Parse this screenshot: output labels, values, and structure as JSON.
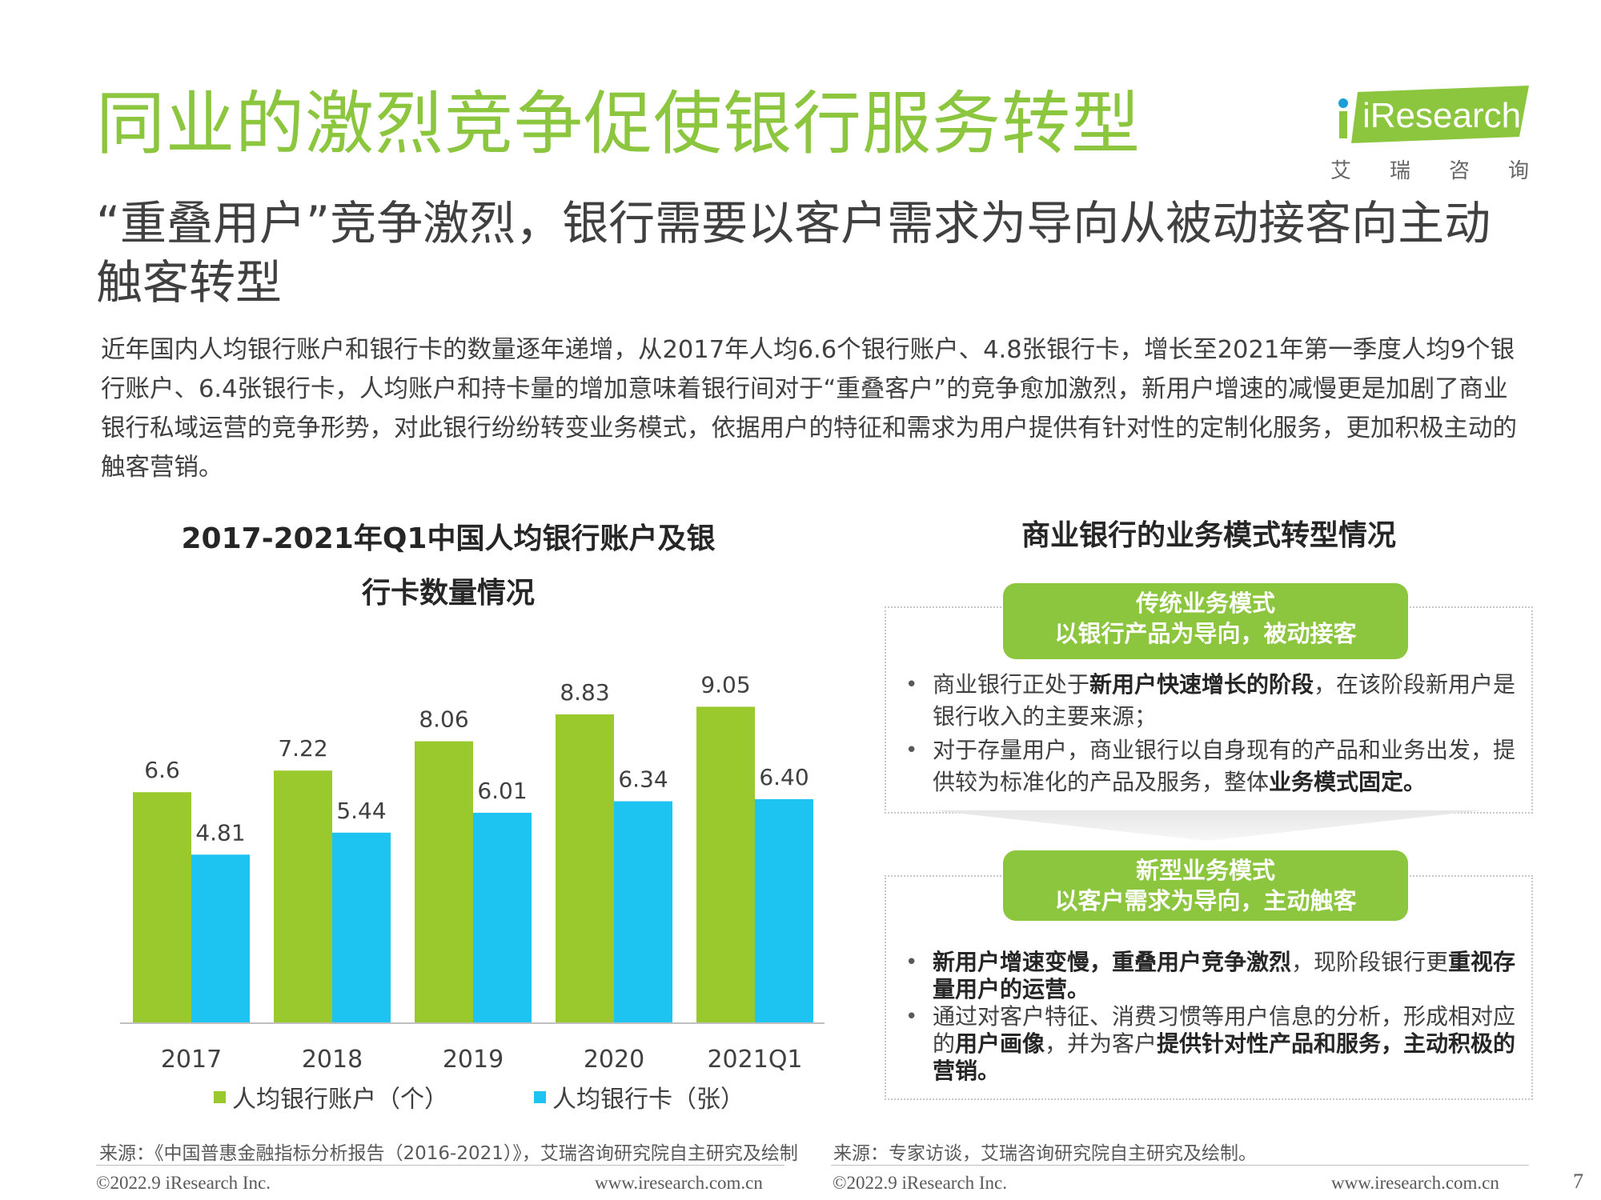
{
  "header": {
    "title": "同业的激烈竞争促使银行服务转型",
    "logo_text": "iResearch",
    "logo_sub": [
      "艾",
      "瑞",
      "咨",
      "询"
    ],
    "subtitle": "“重叠用户”竞争激烈，银行需要以客户需求为导向从被动接客向主动触客转型",
    "body": "近年国内人均银行账户和银行卡的数量逐年递增，从2017年人均6.6个银行账户、4.8张银行卡，增长至2021年第一季度人均9个银行账户、6.4张银行卡，人均账户和持卡量的增加意味着银行间对于“重叠客户”的竞争愈加激烈，新用户增速的减慢更是加剧了商业银行私域运营的竞争形势，对此银行纷纷转变业务模式，依据用户的特征和需求为用户提供有针对性的定制化服务，更加积极主动的触客营销。"
  },
  "left_chart": {
    "title_line1": "2017-2021年Q1中国人均银行账户及银",
    "title_line2": "行卡数量情况"
  },
  "chart_data": {
    "type": "bar",
    "title": "2017-2021年Q1中国人均银行账户及银行卡数量情况",
    "categories": [
      "2017",
      "2018",
      "2019",
      "2020",
      "2021Q1"
    ],
    "series": [
      {
        "name": "人均银行账户（个）",
        "values": [
          6.6,
          7.22,
          8.06,
          8.83,
          9.05
        ],
        "labels": [
          "6.6",
          "7.22",
          "8.06",
          "8.83",
          "9.05"
        ],
        "color": "#9ac92e"
      },
      {
        "name": "人均银行卡（张）",
        "values": [
          4.81,
          5.44,
          6.01,
          6.34,
          6.4
        ],
        "labels": [
          "4.81",
          "5.44",
          "6.01",
          "6.34",
          "6.40"
        ],
        "color": "#1ec4f1"
      }
    ],
    "ylim": [
      0,
      10
    ],
    "grid": false,
    "legend": "bottom"
  },
  "right_panel": {
    "title": "商业银行的业务模式转型情况",
    "traditional": {
      "label_line1": "传统业务模式",
      "label_line2": "以银行产品为导向，被动接客",
      "bullets": [
        {
          "parts": [
            [
              "商业银行正处于",
              false
            ],
            [
              "新用户快速增长的阶段",
              true
            ],
            [
              "，在该阶段新用户是银行收入的主要来源；",
              false
            ]
          ]
        },
        {
          "parts": [
            [
              "对于存量用户，商业银行以自身现有的产品和业务出发，提供较为标准化的产品及服务，整体",
              false
            ],
            [
              "业务模式固定。",
              true
            ]
          ]
        }
      ]
    },
    "new_model": {
      "label_line1": "新型业务模式",
      "label_line2": "以客户需求为导向，主动触客",
      "bullets": [
        {
          "parts": [
            [
              "新用户增速变慢，重叠用户竞争激烈",
              true
            ],
            [
              "，现阶段银行更",
              false
            ],
            [
              "重视存量用户的运营。",
              true
            ]
          ]
        },
        {
          "parts": [
            [
              "通过对客户特征、消费习惯等用户信息的分析，形成相对应的",
              false
            ],
            [
              "用户画像",
              true
            ],
            [
              "，并为客户",
              false
            ],
            [
              "提供针对性产品和服务，主动积极的营销。",
              true
            ]
          ]
        }
      ]
    }
  },
  "footer": {
    "source_left": "来源：《中国普惠金融指标分析报告（2016-2021）》，艾瑞咨询研究院自主研究及绘制",
    "source_right": "来源：专家访谈，艾瑞咨询研究院自主研究及绘制。",
    "copyright_left": "©2022.9 iResearch Inc.",
    "url_left": "www.iresearch.com.cn",
    "copyright_right": "©2022.9 iResearch Inc.",
    "url_right": "www.iresearch.com.cn",
    "page_number": "7"
  },
  "colors": {
    "brand_green": "#8cc63f",
    "bar_green": "#9ac92e",
    "bar_blue": "#1ec4f1"
  }
}
